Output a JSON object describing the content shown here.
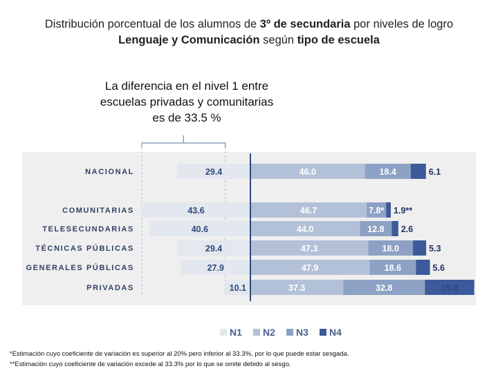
{
  "title": {
    "line1_a": "Distribución porcentual de los alumnos de ",
    "line1_b": "3º de secundaria",
    "line1_c": " por niveles de logro",
    "line2_a": "Lenguaje y Comunicación",
    "line2_b": " según ",
    "line2_c": "tipo de escuela"
  },
  "callout": "La diferencia en el nivel 1 entre escuelas privadas y comunitarias es de 33.5 %",
  "chart_data": {
    "type": "bar",
    "orientation": "horizontal",
    "stacked": true,
    "baseline": "boundary between N1 and N2",
    "categories": [
      "NACIONAL",
      "COMUNITARIAS",
      "TELESECUNDARIAS",
      "TÉCNICAS PÚBLICAS",
      "GENERALES PÚBLICAS",
      "PRIVADAS"
    ],
    "series": [
      {
        "name": "N1",
        "color": "#e3e7ee",
        "values": [
          29.4,
          43.6,
          40.6,
          29.4,
          27.9,
          10.1
        ]
      },
      {
        "name": "N2",
        "color": "#b3c1d8",
        "values": [
          46.0,
          46.7,
          44.0,
          47.3,
          47.9,
          37.3
        ]
      },
      {
        "name": "N3",
        "color": "#8da1c4",
        "values": [
          18.4,
          7.8,
          12.8,
          18.0,
          18.6,
          32.8
        ]
      },
      {
        "name": "N4",
        "color": "#3c5a9a",
        "values": [
          6.1,
          1.9,
          2.6,
          5.3,
          5.6,
          19.8
        ]
      }
    ],
    "labels": [
      [
        "29.4",
        "46.0",
        "18.4",
        "6.1"
      ],
      [
        "43.6",
        "46.7",
        "7.8*",
        "1.9**"
      ],
      [
        "40.6",
        "44.0",
        "12.8",
        "2.6"
      ],
      [
        "29.4",
        "47.3",
        "18.0",
        "5.3"
      ],
      [
        "27.9",
        "47.9",
        "18.6",
        "5.6"
      ],
      [
        "10.1",
        "37.3",
        "32.8",
        "19.8"
      ]
    ],
    "legend": [
      "N1",
      "N2",
      "N3",
      "N4"
    ],
    "legend_position": "bottom"
  },
  "footnotes": {
    "f1": "*Estimación cuyo coeficiente de variación es superior al 20% pero inferior al 33.3%, por lo que puede estar sesgada.",
    "f2": "**Estimación cuyo coeficiente de variación excede al 33.3% por lo que se omite debido al sesgo."
  }
}
